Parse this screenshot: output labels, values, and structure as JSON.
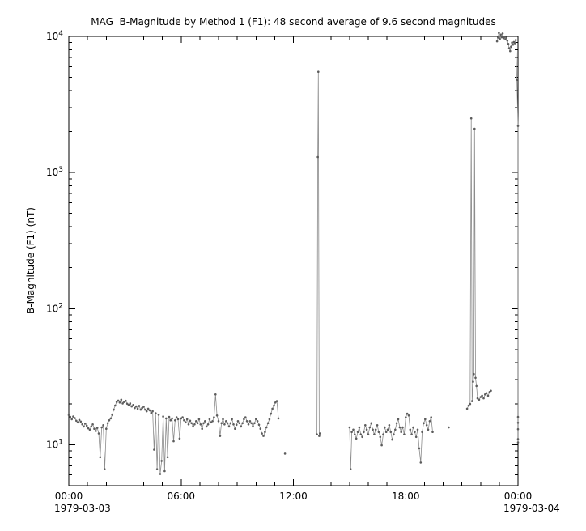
{
  "figure": {
    "title": "MAG  B-Magnitude by Method 1 (F1): 48 second average of 9.6 second magnitudes",
    "ylabel": "B-Magnitude (F1) (nT)",
    "date_left": "1979-03-03",
    "date_right": "1979-03-04",
    "bg_color": "#ffffff",
    "axis_color": "#000000",
    "data_color": "#5c5c5c",
    "line_color": "#8c8c8c"
  },
  "chart_data": {
    "type": "scatter",
    "title": "MAG  B-Magnitude by Method 1 (F1): 48 second average of 9.6 second magnitudes",
    "xlabel": "",
    "ylabel": "B-Magnitude (F1) (nT)",
    "x_unit": "hours since 1979-03-03 00:00",
    "yscale": "log",
    "grid": false,
    "legend": "none",
    "xlim": [
      0,
      24
    ],
    "ylim": [
      5,
      10000
    ],
    "gap_threshold_hours": 0.3,
    "xticks": {
      "values": [
        0,
        6,
        12,
        18,
        24
      ],
      "labels": [
        "00:00",
        "06:00",
        "12:00",
        "18:00",
        "00:00"
      ]
    },
    "yticks": {
      "values": [
        10,
        100,
        1000,
        10000
      ],
      "labels": [
        {
          "base": "10",
          "exp": "1"
        },
        {
          "base": "10",
          "exp": "2"
        },
        {
          "base": "10",
          "exp": "3"
        },
        {
          "base": "10",
          "exp": "4"
        }
      ]
    },
    "points": [
      [
        0,
        16.5
      ],
      [
        0.08,
        16
      ],
      [
        0.16,
        15.4
      ],
      [
        0.24,
        16.1
      ],
      [
        0.32,
        15.7
      ],
      [
        0.4,
        15
      ],
      [
        0.48,
        14.6
      ],
      [
        0.56,
        15.2
      ],
      [
        0.64,
        14.8
      ],
      [
        0.72,
        14.1
      ],
      [
        0.8,
        13.6
      ],
      [
        0.88,
        14.3
      ],
      [
        0.96,
        13.8
      ],
      [
        1.04,
        13.2
      ],
      [
        1.12,
        12.9
      ],
      [
        1.2,
        13.6
      ],
      [
        1.28,
        14.1
      ],
      [
        1.36,
        13.1
      ],
      [
        1.44,
        12.6
      ],
      [
        1.52,
        13.3
      ],
      [
        1.6,
        12.1
      ],
      [
        1.68,
        8.1
      ],
      [
        1.76,
        13.4
      ],
      [
        1.84,
        13.9
      ],
      [
        1.92,
        6.6
      ],
      [
        2,
        13.1
      ],
      [
        2.08,
        14.4
      ],
      [
        2.16,
        15.1
      ],
      [
        2.24,
        15.6
      ],
      [
        2.32,
        16.6
      ],
      [
        2.4,
        18.1
      ],
      [
        2.48,
        19.4
      ],
      [
        2.56,
        20.6
      ],
      [
        2.64,
        21.1
      ],
      [
        2.72,
        20.4
      ],
      [
        2.8,
        21.4
      ],
      [
        2.88,
        20.1
      ],
      [
        2.96,
        20.6
      ],
      [
        3.04,
        21
      ],
      [
        3.12,
        20
      ],
      [
        3.2,
        19.6
      ],
      [
        3.28,
        20.1
      ],
      [
        3.36,
        19.1
      ],
      [
        3.44,
        19.6
      ],
      [
        3.52,
        18.6
      ],
      [
        3.6,
        19.1
      ],
      [
        3.68,
        18.4
      ],
      [
        3.76,
        19.3
      ],
      [
        3.84,
        18.1
      ],
      [
        3.92,
        18.6
      ],
      [
        4,
        19
      ],
      [
        4.08,
        18.1
      ],
      [
        4.16,
        17.6
      ],
      [
        4.24,
        18.4
      ],
      [
        4.32,
        17.9
      ],
      [
        4.4,
        17.1
      ],
      [
        4.48,
        17.6
      ],
      [
        4.56,
        9.2
      ],
      [
        4.64,
        17
      ],
      [
        4.72,
        6.6
      ],
      [
        4.8,
        16.6
      ],
      [
        4.88,
        6.1
      ],
      [
        4.96,
        7.6
      ],
      [
        5.04,
        16.1
      ],
      [
        5.12,
        6.4
      ],
      [
        5.2,
        15.6
      ],
      [
        5.28,
        8.1
      ],
      [
        5.36,
        16
      ],
      [
        5.44,
        15.1
      ],
      [
        5.52,
        15.6
      ],
      [
        5.6,
        10.6
      ],
      [
        5.68,
        15.1
      ],
      [
        5.76,
        15.9
      ],
      [
        5.84,
        15.4
      ],
      [
        5.92,
        11.1
      ],
      [
        6,
        15.6
      ],
      [
        6.08,
        15.9
      ],
      [
        6.16,
        15.1
      ],
      [
        6.24,
        14.6
      ],
      [
        6.32,
        15.4
      ],
      [
        6.4,
        14.1
      ],
      [
        6.48,
        15
      ],
      [
        6.56,
        14.4
      ],
      [
        6.64,
        13.6
      ],
      [
        6.72,
        14.1
      ],
      [
        6.8,
        14.9
      ],
      [
        6.88,
        14.4
      ],
      [
        6.96,
        15.4
      ],
      [
        7.04,
        14.1
      ],
      [
        7.12,
        13.1
      ],
      [
        7.2,
        14.4
      ],
      [
        7.28,
        14.9
      ],
      [
        7.36,
        13.6
      ],
      [
        7.44,
        14.1
      ],
      [
        7.52,
        15.4
      ],
      [
        7.6,
        14.6
      ],
      [
        7.68,
        14.9
      ],
      [
        7.76,
        15.9
      ],
      [
        7.84,
        23.4
      ],
      [
        7.92,
        16.4
      ],
      [
        8,
        14.9
      ],
      [
        8.08,
        11.6
      ],
      [
        8.16,
        14.4
      ],
      [
        8.24,
        15.4
      ],
      [
        8.32,
        14.1
      ],
      [
        8.4,
        14.9
      ],
      [
        8.48,
        14.4
      ],
      [
        8.56,
        13.6
      ],
      [
        8.64,
        14.4
      ],
      [
        8.72,
        15.4
      ],
      [
        8.8,
        14.1
      ],
      [
        8.88,
        13.1
      ],
      [
        8.96,
        14
      ],
      [
        9.04,
        14.9
      ],
      [
        9.12,
        14.4
      ],
      [
        9.2,
        13.6
      ],
      [
        9.28,
        14.4
      ],
      [
        9.36,
        15.4
      ],
      [
        9.44,
        15.9
      ],
      [
        9.52,
        14.9
      ],
      [
        9.6,
        14.1
      ],
      [
        9.68,
        14.9
      ],
      [
        9.76,
        14.4
      ],
      [
        9.84,
        13.6
      ],
      [
        9.92,
        14.4
      ],
      [
        10,
        15.4
      ],
      [
        10.08,
        14.9
      ],
      [
        10.16,
        14
      ],
      [
        10.24,
        13.1
      ],
      [
        10.32,
        12.1
      ],
      [
        10.4,
        11.6
      ],
      [
        10.48,
        12.4
      ],
      [
        10.56,
        13.4
      ],
      [
        10.64,
        14.4
      ],
      [
        10.72,
        15.4
      ],
      [
        10.8,
        16.9
      ],
      [
        10.88,
        18.4
      ],
      [
        10.96,
        19.4
      ],
      [
        11.04,
        20.4
      ],
      [
        11.12,
        20.9
      ],
      [
        11.2,
        15.6
      ],
      [
        11.55,
        8.6
      ],
      [
        13.26,
        11.9
      ],
      [
        13.3,
        1300
      ],
      [
        13.33,
        5500
      ],
      [
        13.38,
        11.6
      ],
      [
        13.42,
        12.1
      ],
      [
        15,
        13.4
      ],
      [
        15.06,
        6.6
      ],
      [
        15.12,
        12.4
      ],
      [
        15.2,
        12.9
      ],
      [
        15.28,
        11.9
      ],
      [
        15.36,
        11.1
      ],
      [
        15.44,
        12.4
      ],
      [
        15.52,
        13.4
      ],
      [
        15.6,
        11.9
      ],
      [
        15.68,
        11.4
      ],
      [
        15.76,
        12.4
      ],
      [
        15.84,
        13.9
      ],
      [
        15.92,
        12.9
      ],
      [
        16,
        11.9
      ],
      [
        16.08,
        13.4
      ],
      [
        16.16,
        14.4
      ],
      [
        16.24,
        12.9
      ],
      [
        16.32,
        11.9
      ],
      [
        16.4,
        12.9
      ],
      [
        16.48,
        13.9
      ],
      [
        16.56,
        12.4
      ],
      [
        16.64,
        11.4
      ],
      [
        16.72,
        9.9
      ],
      [
        16.8,
        11.9
      ],
      [
        16.88,
        13.4
      ],
      [
        16.96,
        12.4
      ],
      [
        17.04,
        12.9
      ],
      [
        17.12,
        13.9
      ],
      [
        17.2,
        12.4
      ],
      [
        17.28,
        10.9
      ],
      [
        17.36,
        11.9
      ],
      [
        17.44,
        12.9
      ],
      [
        17.52,
        14.4
      ],
      [
        17.6,
        15.4
      ],
      [
        17.68,
        13.4
      ],
      [
        17.76,
        12.4
      ],
      [
        17.84,
        13.4
      ],
      [
        17.92,
        11.9
      ],
      [
        18,
        15.9
      ],
      [
        18.08,
        16.9
      ],
      [
        18.16,
        16.4
      ],
      [
        18.24,
        12.9
      ],
      [
        18.32,
        11.9
      ],
      [
        18.4,
        13.4
      ],
      [
        18.48,
        12.4
      ],
      [
        18.56,
        11.4
      ],
      [
        18.64,
        12.9
      ],
      [
        18.72,
        9.4
      ],
      [
        18.8,
        7.4
      ],
      [
        18.88,
        12.4
      ],
      [
        18.96,
        14.4
      ],
      [
        19.04,
        15.4
      ],
      [
        19.12,
        13.9
      ],
      [
        19.2,
        12.9
      ],
      [
        19.28,
        14.9
      ],
      [
        19.36,
        15.9
      ],
      [
        19.44,
        12.4
      ],
      [
        20.3,
        13.4
      ],
      [
        21.28,
        18.4
      ],
      [
        21.36,
        19.4
      ],
      [
        21.44,
        19.9
      ],
      [
        21.5,
        2500
      ],
      [
        21.55,
        20.9
      ],
      [
        21.6,
        29
      ],
      [
        21.64,
        33
      ],
      [
        21.68,
        2100
      ],
      [
        21.73,
        31
      ],
      [
        21.78,
        27
      ],
      [
        21.84,
        21.9
      ],
      [
        21.92,
        21.4
      ],
      [
        22,
        22.4
      ],
      [
        22.08,
        22.9
      ],
      [
        22.16,
        21.9
      ],
      [
        22.24,
        23.4
      ],
      [
        22.32,
        23.9
      ],
      [
        22.4,
        22.9
      ],
      [
        22.48,
        24.4
      ],
      [
        22.55,
        24.9
      ],
      [
        22.88,
        9200
      ],
      [
        22.93,
        9800
      ],
      [
        22.98,
        10600
      ],
      [
        23.03,
        9600
      ],
      [
        23.08,
        10300
      ],
      [
        23.13,
        9850
      ],
      [
        23.18,
        10500
      ],
      [
        23.23,
        9700
      ],
      [
        23.28,
        9950
      ],
      [
        23.33,
        9500
      ],
      [
        23.38,
        9800
      ],
      [
        23.43,
        9300
      ],
      [
        23.48,
        8800
      ],
      [
        23.53,
        8200
      ],
      [
        23.58,
        7800
      ],
      [
        23.63,
        8400
      ],
      [
        23.68,
        9000
      ],
      [
        23.73,
        8700
      ],
      [
        23.78,
        9100
      ],
      [
        23.83,
        8900
      ],
      [
        23.88,
        9400
      ],
      [
        23.94,
        4800
      ],
      [
        24,
        2200
      ],
      [
        24,
        16
      ],
      [
        24,
        14.5
      ],
      [
        24,
        13
      ],
      [
        24,
        11
      ],
      [
        24,
        10.4
      ]
    ]
  }
}
